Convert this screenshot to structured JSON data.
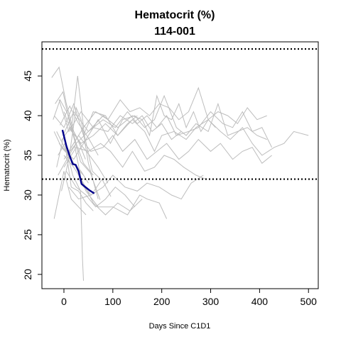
{
  "chart_data": {
    "type": "line",
    "title": "Hematocrit (%)",
    "subtitle": "114-001",
    "xlabel": "Days Since C1D1",
    "ylabel": "Hematocrit (%)",
    "xlim": [
      -45,
      520
    ],
    "ylim": [
      18.2,
      49.3
    ],
    "x_ticks": [
      0,
      100,
      200,
      300,
      400,
      500
    ],
    "y_ticks": [
      20,
      25,
      30,
      35,
      40,
      45
    ],
    "reference_lines": [
      {
        "y": 48.4,
        "style": "dotted",
        "color": "#000000"
      },
      {
        "y": 32.0,
        "style": "dotted",
        "color": "#000000"
      }
    ],
    "colors": {
      "background_series": "#bdbdbd",
      "highlight_series": "#00008b"
    },
    "highlight_series": {
      "name": "114-001",
      "x": [
        -3,
        5,
        12,
        18,
        24,
        30,
        36,
        44,
        52,
        62
      ],
      "y": [
        38.2,
        36.2,
        34.9,
        33.9,
        33.8,
        33.0,
        31.4,
        31.0,
        30.6,
        30.2
      ]
    },
    "series": [
      {
        "x": [
          -25,
          -10,
          5,
          20,
          35,
          50,
          70,
          90
        ],
        "y": [
          44.8,
          46.1,
          41.5,
          38.0,
          36.3,
          35.2,
          33.5,
          31.5
        ]
      },
      {
        "x": [
          -22,
          -8,
          8,
          25,
          40,
          60
        ],
        "y": [
          39.5,
          42.0,
          40.2,
          36.5,
          34.0,
          32.5
        ]
      },
      {
        "x": [
          -20,
          0,
          15,
          30,
          45
        ],
        "y": [
          27.0,
          33.0,
          29.5,
          28.5,
          27.5
        ]
      },
      {
        "x": [
          -20,
          -5,
          10,
          25,
          40
        ],
        "y": [
          38.0,
          36.0,
          35.0,
          33.5,
          32.5
        ]
      },
      {
        "x": [
          -15,
          0,
          15,
          30,
          45,
          60
        ],
        "y": [
          33.5,
          37.5,
          31.0,
          30.5,
          29.0,
          28.0
        ]
      },
      {
        "x": [
          -18,
          -2,
          12,
          28,
          44
        ],
        "y": [
          41.5,
          43.0,
          39.0,
          37.0,
          34.5
        ]
      },
      {
        "x": [
          -12,
          2,
          18,
          34,
          38,
          40
        ],
        "y": [
          35.0,
          36.5,
          32.5,
          30.5,
          22.0,
          19.2
        ]
      },
      {
        "x": [
          -10,
          5,
          20,
          35,
          50
        ],
        "y": [
          36.5,
          35.5,
          34.0,
          33.0,
          31.5
        ]
      },
      {
        "x": [
          -5,
          10,
          25,
          35,
          50,
          70
        ],
        "y": [
          30.5,
          34.5,
          41.0,
          39.5,
          34.0,
          29.5
        ]
      },
      {
        "x": [
          0,
          15,
          28,
          42,
          58,
          75
        ],
        "y": [
          40.5,
          38.0,
          45.0,
          37.5,
          33.0,
          32.0
        ]
      },
      {
        "x": [
          -15,
          5,
          25,
          45,
          70,
          100,
          130,
          155,
          170,
          195,
          210
        ],
        "y": [
          38.0,
          35.5,
          33.5,
          30.5,
          28.5,
          28.5,
          27.5,
          30.0,
          29.5,
          29.0,
          27.0
        ]
      },
      {
        "x": [
          0,
          20,
          40,
          60,
          85,
          110,
          135,
          160
        ],
        "y": [
          35.0,
          33.5,
          31.5,
          29.0,
          27.5,
          29.0,
          28.0,
          29.5
        ]
      },
      {
        "x": [
          5,
          25,
          45,
          65,
          85,
          105,
          125,
          145
        ],
        "y": [
          33.0,
          31.0,
          30.0,
          28.5,
          29.5,
          31.0,
          30.0,
          28.5
        ]
      },
      {
        "x": [
          10,
          30,
          55,
          80,
          100,
          125,
          150,
          170,
          195,
          220,
          240,
          260,
          285
        ],
        "y": [
          31.0,
          29.5,
          30.0,
          31.0,
          32.5,
          31.0,
          30.5,
          31.5,
          31.0,
          30.0,
          29.5,
          31.5,
          32.5
        ]
      },
      {
        "x": [
          0,
          25,
          50,
          75,
          95,
          120,
          140,
          165,
          185,
          205,
          225,
          245,
          270,
          290
        ],
        "y": [
          33.5,
          36.0,
          35.5,
          36.5,
          35.5,
          33.5,
          35.5,
          33.0,
          33.5,
          35.0,
          34.5,
          33.5,
          32.5,
          32.0
        ]
      },
      {
        "x": [
          5,
          30,
          55,
          80,
          100,
          120,
          145,
          170,
          190,
          210,
          235,
          255,
          275,
          300,
          320,
          345,
          365,
          385,
          405,
          425
        ],
        "y": [
          35.0,
          37.5,
          35.5,
          36.0,
          37.5,
          35.5,
          37.0,
          34.5,
          35.5,
          36.5,
          34.5,
          35.5,
          37.0,
          35.5,
          36.5,
          34.5,
          35.5,
          36.0,
          34.0,
          35.0
        ]
      },
      {
        "x": [
          10,
          35,
          60,
          85,
          110,
          140,
          165,
          185,
          200,
          225,
          250,
          270,
          295,
          320,
          340,
          365,
          385,
          405,
          430,
          450,
          470,
          500
        ],
        "y": [
          38.5,
          36.5,
          37.5,
          39.0,
          37.5,
          39.5,
          38.0,
          35.5,
          37.5,
          38.0,
          37.0,
          38.5,
          39.5,
          38.0,
          37.0,
          38.5,
          36.5,
          35.0,
          36.0,
          36.5,
          38.0,
          37.5
        ]
      },
      {
        "x": [
          -10,
          10,
          35,
          60,
          90,
          115,
          140,
          160,
          180,
          200,
          220,
          240
        ],
        "y": [
          42.0,
          38.0,
          40.5,
          38.5,
          38.0,
          40.0,
          39.0,
          40.0,
          38.0,
          39.0,
          37.0,
          38.0
        ]
      },
      {
        "x": [
          0,
          25,
          50,
          80,
          105,
          130,
          150,
          170,
          190,
          210,
          230,
          255,
          275,
          300,
          325,
          345,
          365,
          385,
          405,
          425
        ],
        "y": [
          34.5,
          36.5,
          38.0,
          39.5,
          38.5,
          40.5,
          39.0,
          40.0,
          38.5,
          40.0,
          37.5,
          38.0,
          38.5,
          40.5,
          39.0,
          38.5,
          40.5,
          38.0,
          38.5,
          36.0
        ]
      },
      {
        "x": [
          -5,
          20,
          45,
          70,
          95,
          120,
          145,
          165,
          185,
          205,
          230,
          250,
          270,
          295,
          315,
          335,
          355,
          375,
          395,
          415
        ],
        "y": [
          36.0,
          34.5,
          37.0,
          39.5,
          36.5,
          39.5,
          40.0,
          38.5,
          39.5,
          42.5,
          38.5,
          37.5,
          39.0,
          38.0,
          41.5,
          37.5,
          38.0,
          38.5,
          37.5,
          37.0
        ]
      },
      {
        "x": [
          -2,
          20,
          50,
          80,
          110,
          140,
          160,
          175,
          190,
          205,
          220,
          235,
          250,
          265,
          280,
          295,
          310
        ],
        "y": [
          37.5,
          40.5,
          38.0,
          40.0,
          38.5,
          40.0,
          39.5,
          37.5,
          42.5,
          40.0,
          39.5,
          41.5,
          38.5,
          40.5,
          38.0,
          39.5,
          38.5
        ]
      },
      {
        "x": [
          15,
          40,
          65,
          90,
          115,
          135,
          155,
          175,
          195,
          215,
          235,
          255,
          275,
          295,
          315,
          335,
          355,
          375,
          395,
          415
        ],
        "y": [
          36.0,
          38.5,
          40.5,
          39.5,
          42.0,
          40.5,
          41.0,
          40.0,
          41.5,
          41.0,
          39.5,
          40.5,
          43.5,
          39.5,
          40.5,
          40.0,
          39.0,
          41.0,
          39.5,
          40.0
        ]
      },
      {
        "x": [
          -20,
          0,
          20,
          40,
          60,
          85,
          110,
          130,
          150
        ],
        "y": [
          40.0,
          38.5,
          41.5,
          37.5,
          40.5,
          40.0,
          37.5,
          39.0,
          40.0
        ]
      },
      {
        "x": [
          -8,
          12,
          30,
          50,
          70
        ],
        "y": [
          38.8,
          41.2,
          39.0,
          37.2,
          35.0
        ]
      },
      {
        "x": [
          -12,
          6,
          22,
          38,
          56,
          78,
          96
        ],
        "y": [
          32.5,
          34.5,
          36.2,
          31.2,
          30.0,
          32.0,
          29.8
        ]
      },
      {
        "x": [
          -6,
          14,
          34,
          54,
          74
        ],
        "y": [
          36.8,
          38.6,
          34.2,
          32.8,
          29.4
        ]
      }
    ]
  }
}
